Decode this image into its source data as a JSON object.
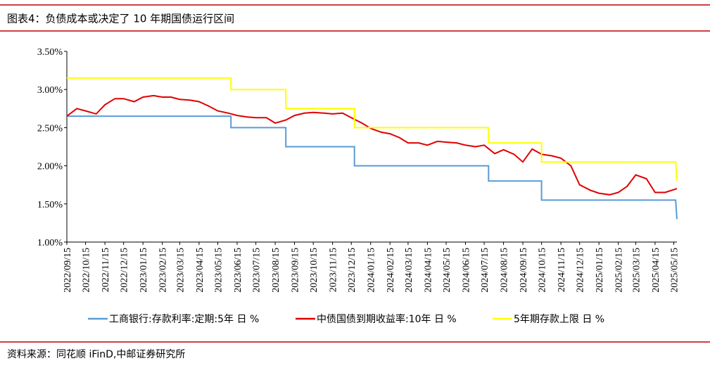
{
  "chart_data": {
    "type": "line",
    "title": "图表4：负债成本或决定了 10 年期国债运行区间",
    "source": "资料来源：同花顺 iFinD,中邮证券研究所",
    "xlim": [
      "2022/09/15",
      "2025/05/20"
    ],
    "xticks": [
      "2022/09/15",
      "2022/10/15",
      "2022/11/15",
      "2022/12/15",
      "2023/01/15",
      "2023/02/15",
      "2023/03/15",
      "2023/04/15",
      "2023/05/15",
      "2023/06/15",
      "2023/07/15",
      "2023/08/15",
      "2023/09/15",
      "2023/10/15",
      "2023/11/15",
      "2023/12/15",
      "2024/01/15",
      "2024/02/15",
      "2024/03/15",
      "2024/04/15",
      "2024/05/15",
      "2024/06/15",
      "2024/07/15",
      "2024/08/15",
      "2024/09/15",
      "2024/10/15",
      "2024/11/15",
      "2024/12/15",
      "2025/01/15",
      "2025/02/15",
      "2025/03/15",
      "2025/04/15",
      "2025/05/15"
    ],
    "ylim": [
      1.0,
      3.5
    ],
    "yticks": [
      {
        "value": 1.0,
        "label": "1.00%"
      },
      {
        "value": 1.5,
        "label": "1.50%"
      },
      {
        "value": 2.0,
        "label": "2.00%"
      },
      {
        "value": 2.5,
        "label": "2.50%"
      },
      {
        "value": 3.0,
        "label": "3.00%"
      },
      {
        "value": 3.5,
        "label": "3.50%"
      }
    ],
    "series": [
      {
        "name": "工商银行:存款利率:定期:5年 日 %",
        "color": "#5b9bd5",
        "x": [
          "2022/09/15",
          "2023/06/05",
          "2023/06/05",
          "2023/09/01",
          "2023/09/01",
          "2023/12/20",
          "2023/12/20",
          "2024/07/22",
          "2024/07/22",
          "2024/10/15",
          "2024/10/15",
          "2025/05/18",
          "2025/05/20"
        ],
        "values": [
          2.65,
          2.65,
          2.5,
          2.5,
          2.25,
          2.25,
          2.0,
          2.0,
          1.8,
          1.8,
          1.55,
          1.55,
          1.3
        ]
      },
      {
        "name": "中债国债到期收益率:10年 日 %",
        "color": "#e00000",
        "x": [
          "2022/09/15",
          "2022/10/01",
          "2022/10/15",
          "2022/11/01",
          "2022/11/15",
          "2022/12/01",
          "2022/12/15",
          "2023/01/01",
          "2023/01/15",
          "2023/02/01",
          "2023/02/15",
          "2023/03/01",
          "2023/03/15",
          "2023/04/01",
          "2023/04/15",
          "2023/05/01",
          "2023/05/15",
          "2023/06/01",
          "2023/06/15",
          "2023/07/01",
          "2023/07/15",
          "2023/08/01",
          "2023/08/15",
          "2023/09/01",
          "2023/09/15",
          "2023/10/01",
          "2023/10/15",
          "2023/11/01",
          "2023/11/15",
          "2023/12/01",
          "2023/12/15",
          "2024/01/01",
          "2024/01/15",
          "2024/02/01",
          "2024/02/15",
          "2024/03/01",
          "2024/03/15",
          "2024/04/01",
          "2024/04/15",
          "2024/05/01",
          "2024/05/15",
          "2024/06/01",
          "2024/06/15",
          "2024/07/01",
          "2024/07/15",
          "2024/08/01",
          "2024/08/15",
          "2024/09/01",
          "2024/09/15",
          "2024/09/30",
          "2024/10/15",
          "2024/11/01",
          "2024/11/15",
          "2024/12/01",
          "2024/12/15",
          "2025/01/01",
          "2025/01/15",
          "2025/02/01",
          "2025/02/15",
          "2025/03/01",
          "2025/03/15",
          "2025/04/01",
          "2025/04/15",
          "2025/05/01",
          "2025/05/20"
        ],
        "values": [
          2.65,
          2.75,
          2.72,
          2.68,
          2.8,
          2.88,
          2.88,
          2.84,
          2.9,
          2.92,
          2.9,
          2.9,
          2.87,
          2.86,
          2.84,
          2.78,
          2.72,
          2.69,
          2.66,
          2.64,
          2.63,
          2.63,
          2.56,
          2.6,
          2.66,
          2.69,
          2.7,
          2.69,
          2.68,
          2.69,
          2.63,
          2.56,
          2.49,
          2.44,
          2.42,
          2.37,
          2.3,
          2.3,
          2.27,
          2.32,
          2.31,
          2.3,
          2.27,
          2.25,
          2.27,
          2.16,
          2.21,
          2.15,
          2.05,
          2.22,
          2.15,
          2.13,
          2.1,
          2.0,
          1.75,
          1.68,
          1.64,
          1.62,
          1.65,
          1.73,
          1.88,
          1.83,
          1.65,
          1.65,
          1.7
        ]
      },
      {
        "name": "5年期存款上限 日 %",
        "color": "#ffff00",
        "x": [
          "2022/09/15",
          "2023/06/05",
          "2023/06/05",
          "2023/09/01",
          "2023/09/01",
          "2023/12/20",
          "2023/12/20",
          "2024/07/22",
          "2024/07/22",
          "2024/10/15",
          "2024/10/15",
          "2025/05/18",
          "2025/05/20"
        ],
        "values": [
          3.15,
          3.15,
          3.0,
          3.0,
          2.75,
          2.75,
          2.5,
          2.5,
          2.3,
          2.3,
          2.05,
          2.05,
          1.8
        ]
      }
    ]
  }
}
